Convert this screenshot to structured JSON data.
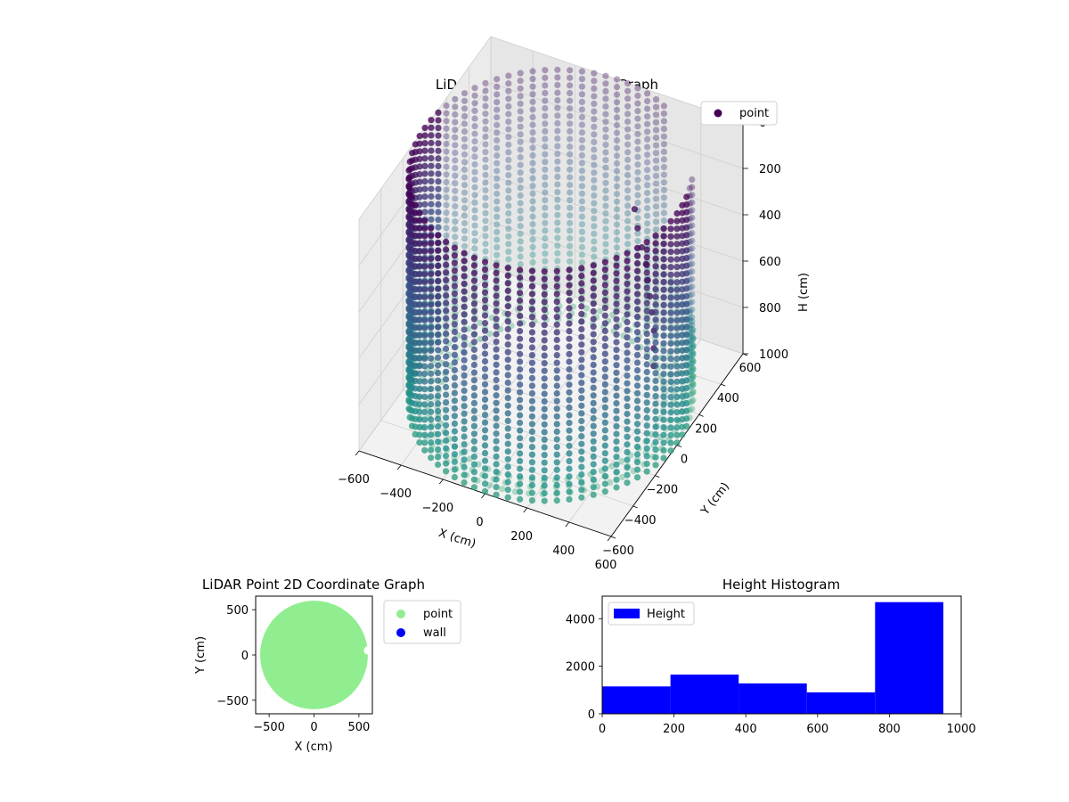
{
  "chart_data": [
    {
      "type": "scatter",
      "projection": "3d",
      "title": "LiDAR Point 3D Coordinate Graph",
      "xlabel": "X (cm)",
      "ylabel": "Y (cm)",
      "zlabel": "H (cm)",
      "xlim": [
        -600,
        600
      ],
      "ylim": [
        -600,
        600
      ],
      "zlim": [
        1000,
        0
      ],
      "z_inverted": true,
      "xticks": [
        -600,
        -400,
        -200,
        0,
        200,
        400,
        600
      ],
      "yticks": [
        -600,
        -400,
        -200,
        0,
        200,
        400,
        600
      ],
      "zticks": [
        0,
        200,
        400,
        600,
        800,
        1000
      ],
      "legend": [
        {
          "name": "point",
          "color": "#440154"
        }
      ],
      "legend_position": "upper-right",
      "grid": true,
      "cylinder": {
        "center_x": 0,
        "center_y": 0,
        "radius": 600,
        "h_min": 0,
        "h_max": 1000
      },
      "colormap": [
        "#440154",
        "#3b528b",
        "#21918c",
        "#5ec962"
      ],
      "inner_cluster": [
        {
          "x": 330,
          "y": 130,
          "h": 150
        },
        {
          "x": 350,
          "y": 120,
          "h": 220
        },
        {
          "x": 380,
          "y": 100,
          "h": 280
        },
        {
          "x": 410,
          "y": 80,
          "h": 330
        },
        {
          "x": 430,
          "y": 60,
          "h": 380
        },
        {
          "x": 450,
          "y": 40,
          "h": 430
        },
        {
          "x": 470,
          "y": 20,
          "h": 480
        },
        {
          "x": 490,
          "y": 0,
          "h": 540
        },
        {
          "x": 500,
          "y": -20,
          "h": 600
        },
        {
          "x": 510,
          "y": -40,
          "h": 660
        }
      ]
    },
    {
      "type": "scatter",
      "title": "LiDAR Point 2D Coordinate Graph",
      "xlabel": "X (cm)",
      "ylabel": "Y (cm)",
      "xlim": [
        -650,
        650
      ],
      "ylim": [
        -650,
        650
      ],
      "xticks": [
        -500,
        0,
        500
      ],
      "yticks": [
        -500,
        0,
        500
      ],
      "series": [
        {
          "name": "point",
          "color": "#90ee90",
          "shape": "disc",
          "center": [
            0,
            0
          ],
          "radius": 600
        },
        {
          "name": "wall",
          "color": "#0000ff",
          "values": []
        }
      ],
      "notch": {
        "x": 600,
        "y": 50,
        "r": 45
      },
      "legend_position": "outside-right"
    },
    {
      "type": "bar",
      "title": "Height Histogram",
      "xlim": [
        0,
        1000
      ],
      "ylim": [
        0,
        4950
      ],
      "xticks": [
        0,
        200,
        400,
        600,
        800,
        1000
      ],
      "yticks": [
        0,
        2000,
        4000
      ],
      "bin_edges": [
        0,
        190,
        380,
        570,
        760,
        950
      ],
      "values": [
        1150,
        1650,
        1280,
        900,
        4700
      ],
      "series_name": "Height",
      "color": "#0000ff",
      "legend_position": "upper-left"
    }
  ]
}
